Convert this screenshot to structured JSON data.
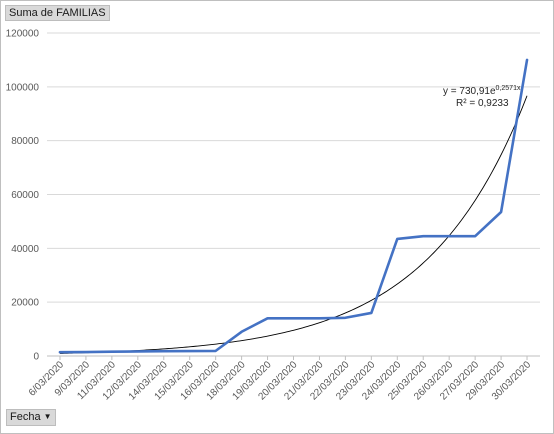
{
  "pivot": {
    "values_field": "Suma de FAMILIAS",
    "axis_field": "Fecha",
    "axis_dropdown_icon": "dropdown-arrow-icon"
  },
  "chart_data": {
    "type": "line",
    "title": "",
    "xlabel": "",
    "ylabel": "",
    "categories": [
      "6/03/2020",
      "9/03/2020",
      "11/03/2020",
      "12/03/2020",
      "14/03/2020",
      "15/03/2020",
      "16/03/2020",
      "18/03/2020",
      "19/03/2020",
      "20/03/2020",
      "21/03/2020",
      "22/03/2020",
      "23/03/2020",
      "24/03/2020",
      "25/03/2020",
      "26/03/2020",
      "27/03/2020",
      "29/03/2020",
      "30/03/2020"
    ],
    "series": [
      {
        "values": [
          1400,
          1450,
          1600,
          1700,
          1800,
          1850,
          1900,
          9000,
          14000,
          14000,
          14000,
          14200,
          16000,
          43500,
          44500,
          44500,
          44500,
          53500,
          110000
        ],
        "color": "#4472c4"
      }
    ],
    "trendline": {
      "type": "exponential",
      "equation_prefix": "y = 730,91e",
      "equation_exponent": "0,2571x",
      "r2_label": "R² = 0,9233",
      "a": 730.91,
      "b": 0.2571,
      "color": "#000000"
    },
    "yticks": [
      0,
      20000,
      40000,
      60000,
      80000,
      100000,
      120000
    ],
    "ytick_labels": [
      "0",
      "20000",
      "40000",
      "60000",
      "80000",
      "100000",
      "120000"
    ],
    "ylim": [
      0,
      120000
    ],
    "grid": true
  }
}
